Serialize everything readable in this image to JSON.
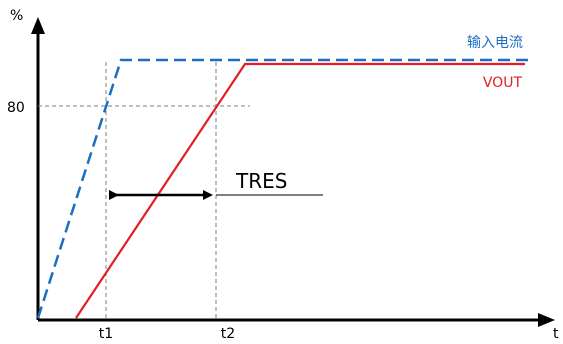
{
  "axes": {
    "y_unit": "%",
    "x_unit": "t",
    "y_tick": "80",
    "x_ticks": [
      "t1",
      "t2"
    ]
  },
  "series": {
    "input_label": "输入电流",
    "output_label": "VOUT"
  },
  "annotation": {
    "label": "TRES"
  },
  "colors": {
    "input": "#1b6ec2",
    "output": "#e31e24",
    "axis": "#000000",
    "guide": "#7f7f7f"
  }
}
